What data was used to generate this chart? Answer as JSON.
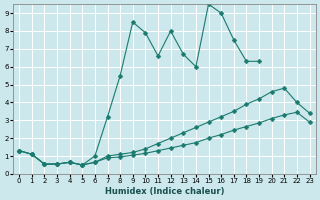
{
  "title": "",
  "xlabel": "Humidex (Indice chaleur)",
  "bg_color": "#cce8ec",
  "grid_color": "#ffffff",
  "line_color": "#1a7a6e",
  "xlim": [
    -0.5,
    23.5
  ],
  "ylim": [
    0,
    9.5
  ],
  "xticks": [
    0,
    1,
    2,
    3,
    4,
    5,
    6,
    7,
    8,
    9,
    10,
    11,
    12,
    13,
    14,
    15,
    16,
    17,
    18,
    19,
    20,
    21,
    22,
    23
  ],
  "yticks": [
    0,
    1,
    2,
    3,
    4,
    5,
    6,
    7,
    8,
    9
  ],
  "line1_x": [
    0,
    1,
    2,
    3,
    4,
    5,
    6,
    7,
    8,
    9,
    10,
    11,
    12,
    13,
    14,
    15,
    16,
    17,
    18,
    19,
    20,
    21,
    22,
    23
  ],
  "line1_y": [
    1.3,
    1.1,
    0.55,
    0.55,
    0.65,
    0.5,
    0.65,
    0.9,
    0.95,
    1.05,
    1.15,
    1.3,
    1.45,
    1.6,
    1.75,
    2.0,
    2.2,
    2.45,
    2.65,
    2.85,
    3.1,
    3.3,
    3.45,
    2.9
  ],
  "line2_x": [
    0,
    1,
    2,
    3,
    4,
    5,
    6,
    7,
    8,
    9,
    10,
    11,
    12,
    13,
    14,
    15,
    16,
    17,
    18,
    19,
    20,
    21,
    22,
    23
  ],
  "line2_y": [
    1.3,
    1.1,
    0.55,
    0.55,
    0.65,
    0.5,
    0.65,
    1.0,
    1.1,
    1.2,
    1.4,
    1.7,
    2.0,
    2.3,
    2.6,
    2.9,
    3.2,
    3.5,
    3.9,
    4.2,
    4.6,
    4.8,
    4.0,
    3.4
  ],
  "line3_x": [
    0,
    1,
    2,
    3,
    4,
    5,
    6,
    7,
    8,
    9,
    10,
    11,
    12,
    13,
    14,
    15,
    16,
    17,
    18,
    19
  ],
  "line3_y": [
    1.3,
    1.1,
    0.55,
    0.55,
    0.65,
    0.5,
    1.0,
    3.2,
    5.5,
    8.5,
    7.9,
    6.6,
    8.0,
    6.7,
    6.0,
    9.5,
    9.0,
    7.5,
    6.3,
    6.3
  ],
  "marker_size": 2.5,
  "line_width": 0.8,
  "tick_fontsize": 5.0,
  "xlabel_fontsize": 6.0
}
